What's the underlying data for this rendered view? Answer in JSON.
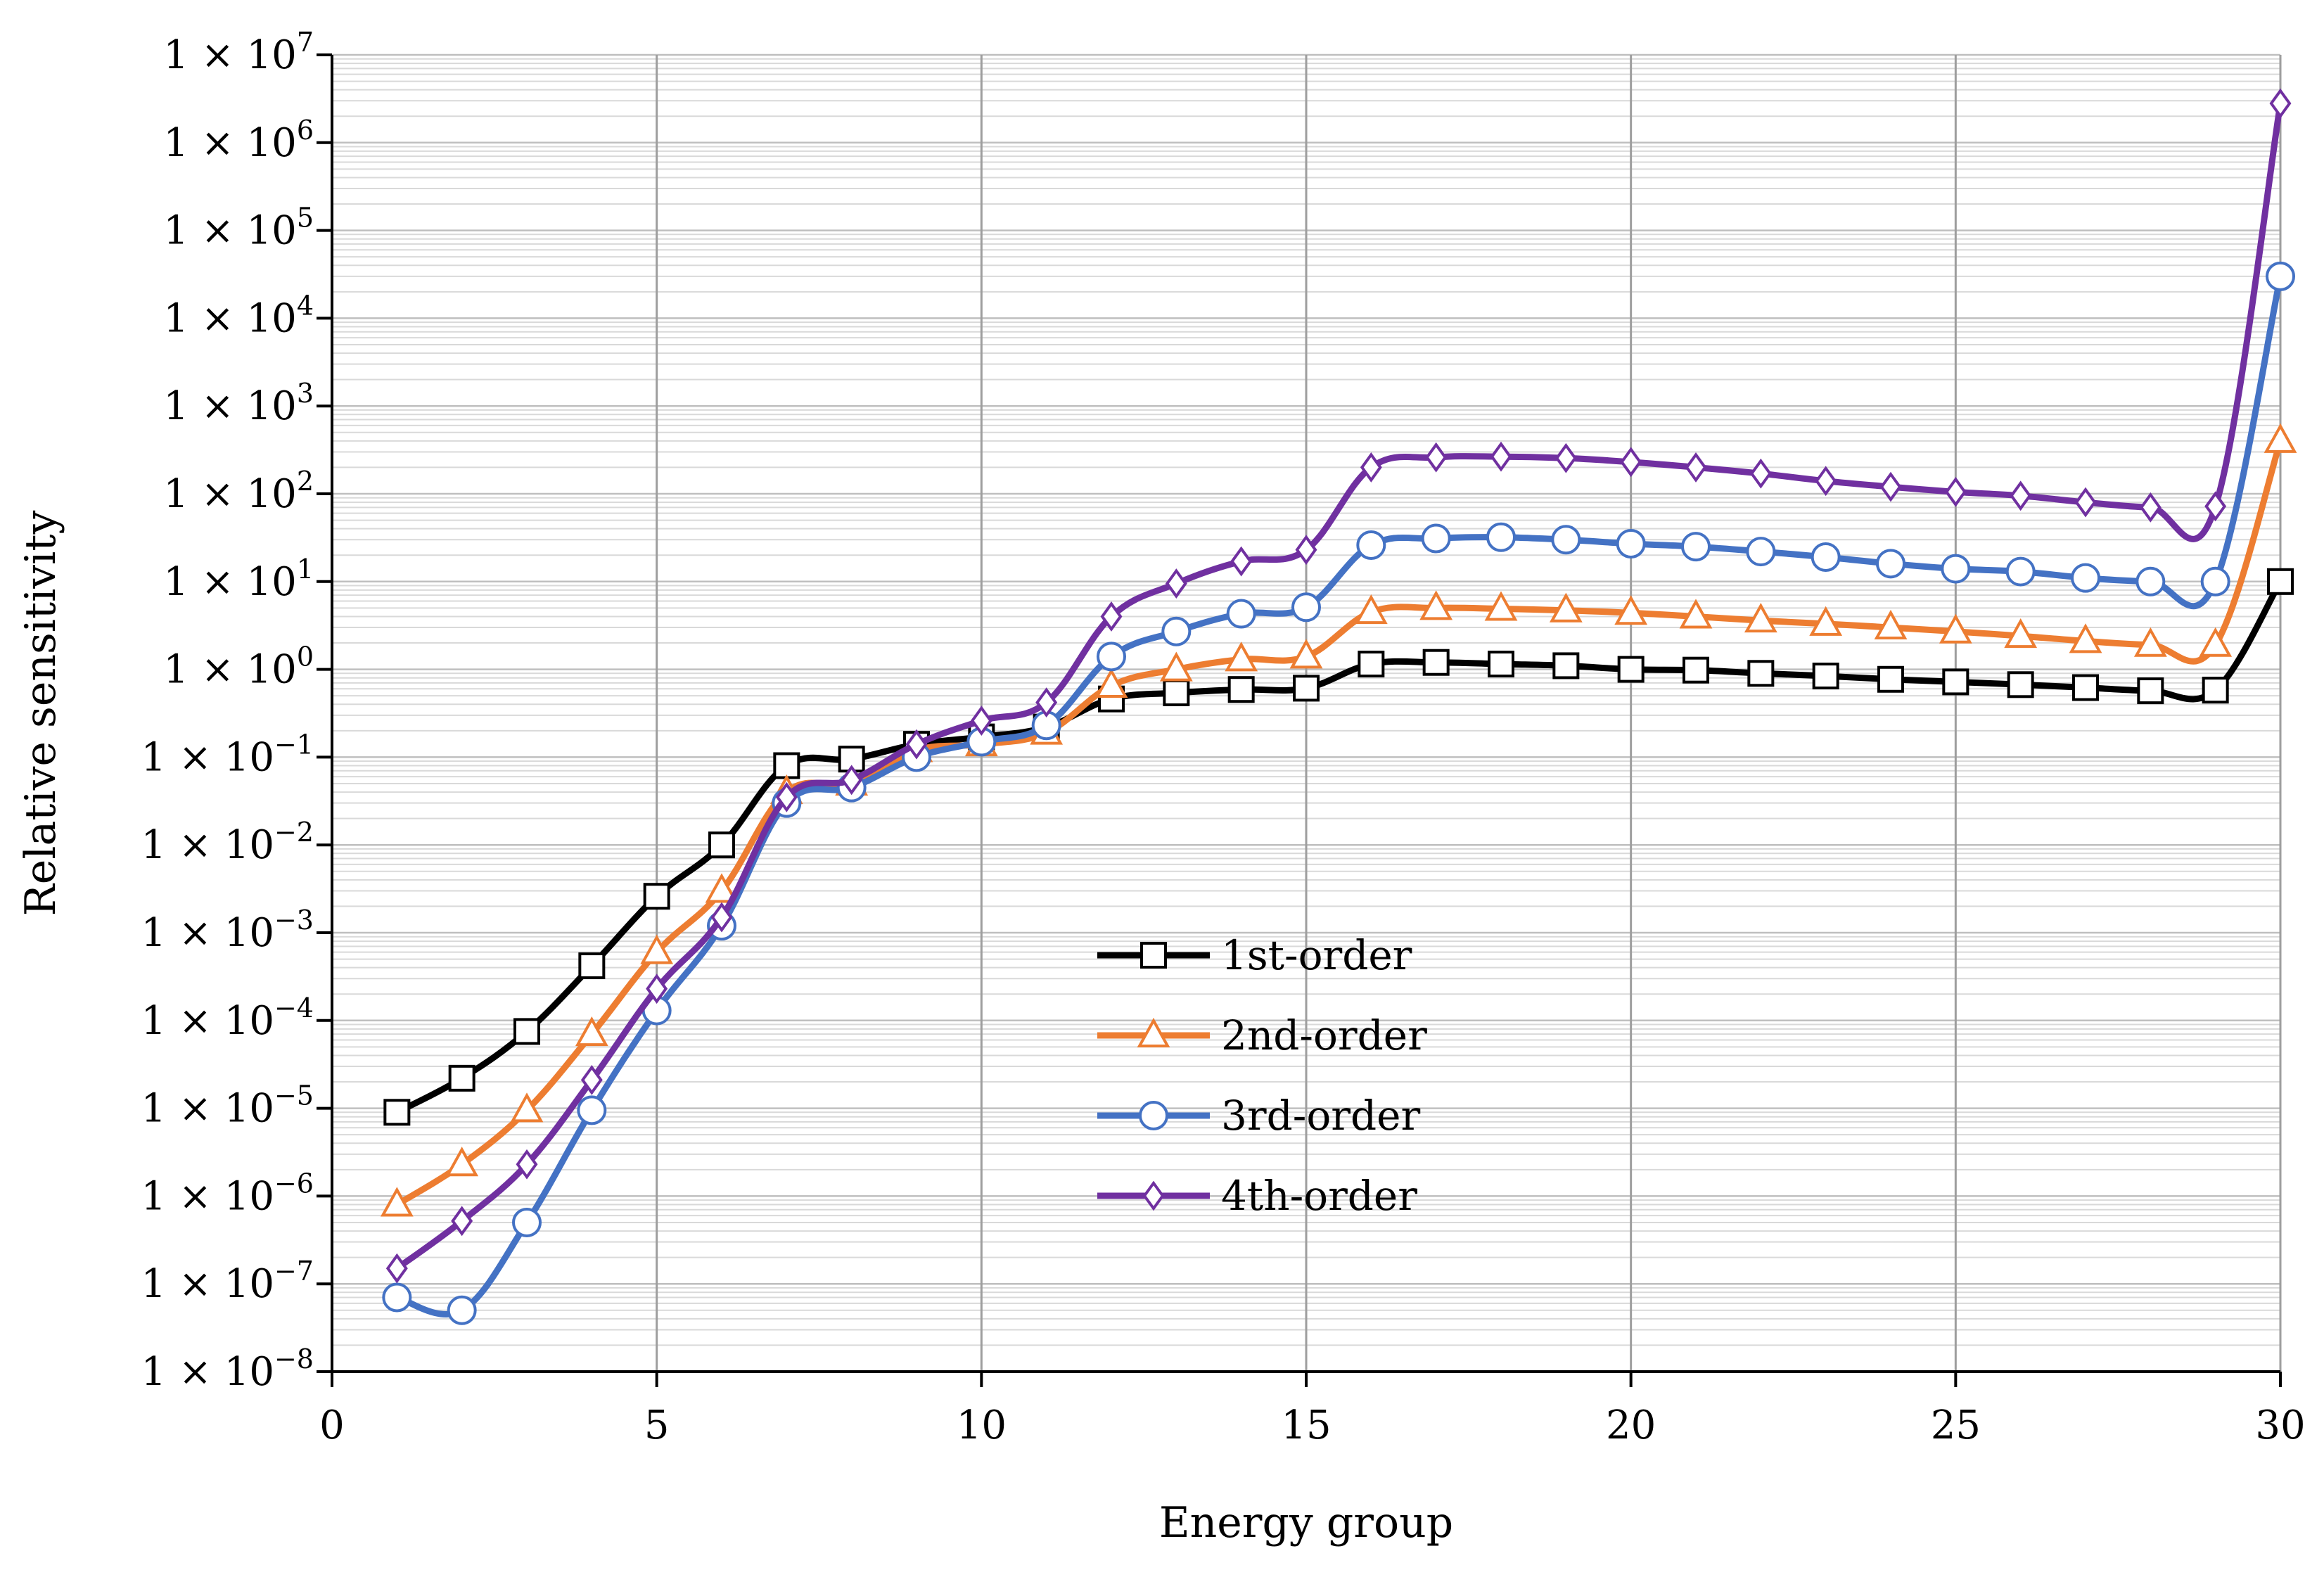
{
  "chart_data": {
    "type": "line",
    "title": "",
    "xlabel": "Energy group",
    "ylabel": "Relative sensitivity",
    "xlim": [
      0,
      30
    ],
    "ylim_log10": [
      -8,
      7
    ],
    "y_scale": "log",
    "x_ticks": [
      0,
      5,
      10,
      15,
      20,
      25,
      30
    ],
    "y_tick_base": "1 × 10",
    "y_tick_exponents": [
      7,
      6,
      5,
      4,
      3,
      2,
      1,
      0,
      -1,
      -2,
      -3,
      -4,
      -5,
      -6,
      -7,
      -8
    ],
    "grid": true,
    "legend_position": "center-bottom",
    "x": [
      1,
      2,
      3,
      4,
      5,
      6,
      7,
      8,
      9,
      10,
      11,
      12,
      13,
      14,
      15,
      16,
      17,
      18,
      19,
      20,
      21,
      22,
      23,
      24,
      25,
      26,
      27,
      28,
      29,
      30
    ],
    "series": [
      {
        "name": "1st-order",
        "color": "#000000",
        "marker": "square",
        "values": [
          9e-06,
          2.2e-05,
          7.5e-05,
          0.00042,
          0.0026,
          0.01,
          0.08,
          0.095,
          0.14,
          0.17,
          0.22,
          0.46,
          0.54,
          0.59,
          0.61,
          1.15,
          1.2,
          1.15,
          1.1,
          1.0,
          0.98,
          0.9,
          0.84,
          0.77,
          0.72,
          0.67,
          0.62,
          0.57,
          0.58,
          10
        ]
      },
      {
        "name": "2nd-order",
        "color": "#ED7D31",
        "marker": "triangle",
        "values": [
          8e-07,
          2.3e-06,
          9.5e-06,
          7e-05,
          0.0006,
          0.003,
          0.04,
          0.05,
          0.12,
          0.14,
          0.19,
          0.65,
          1.0,
          1.3,
          1.4,
          4.5,
          5.0,
          4.9,
          4.7,
          4.4,
          4.0,
          3.6,
          3.3,
          3.0,
          2.7,
          2.4,
          2.1,
          1.9,
          1.9,
          400
        ]
      },
      {
        "name": "3rd-order",
        "color": "#4472C4",
        "marker": "circle",
        "values": [
          7e-08,
          5e-08,
          5e-07,
          9.5e-06,
          0.00013,
          0.0012,
          0.03,
          0.045,
          0.1,
          0.15,
          0.23,
          1.4,
          2.7,
          4.3,
          5.1,
          26,
          31,
          32,
          30,
          27,
          25,
          22,
          19,
          16,
          14,
          13,
          11,
          10,
          10,
          30000
        ]
      },
      {
        "name": "4th-order",
        "color": "#7030A0",
        "marker": "diamond",
        "values": [
          1.5e-07,
          5.2e-07,
          2.3e-06,
          2.1e-05,
          0.00023,
          0.0015,
          0.035,
          0.055,
          0.14,
          0.26,
          0.42,
          4.0,
          9.5,
          17,
          23,
          200,
          260,
          265,
          255,
          230,
          200,
          170,
          140,
          120,
          105,
          95,
          80,
          70,
          72,
          2800000
        ]
      }
    ]
  }
}
